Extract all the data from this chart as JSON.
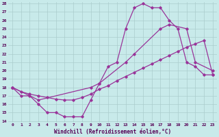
{
  "xlabel": "Windchill (Refroidissement éolien,°C)",
  "bg_color": "#c8eaea",
  "line_color": "#993399",
  "grid_color": "#aacccc",
  "ylim": [
    14,
    28
  ],
  "xlim": [
    -0.5,
    23.5
  ],
  "yticks": [
    14,
    15,
    16,
    17,
    18,
    19,
    20,
    21,
    22,
    23,
    24,
    25,
    26,
    27,
    28
  ],
  "xticks": [
    0,
    1,
    2,
    3,
    4,
    5,
    6,
    7,
    8,
    9,
    10,
    11,
    12,
    13,
    14,
    15,
    16,
    17,
    18,
    19,
    20,
    21,
    22,
    23
  ],
  "line1_x": [
    0,
    1,
    2,
    3,
    4,
    5,
    6,
    7,
    8,
    9,
    10,
    11,
    12,
    13,
    14,
    15,
    16,
    17,
    18,
    19,
    20,
    21,
    22,
    23
  ],
  "line1_y": [
    18,
    17,
    17,
    16,
    15,
    15,
    14.5,
    14.5,
    14.5,
    16.5,
    18.5,
    20.5,
    21,
    25,
    27.5,
    28,
    27.5,
    27.5,
    26,
    25,
    21,
    20.5,
    19.5,
    19.5
  ],
  "line2_x": [
    0,
    3,
    9,
    10,
    13,
    14,
    17,
    18,
    20,
    21,
    23
  ],
  "line2_y": [
    18,
    16.5,
    18,
    18.5,
    21,
    22,
    25,
    25.5,
    25,
    21,
    20
  ],
  "line3_x": [
    0,
    1,
    2,
    3,
    4,
    5,
    6,
    7,
    8,
    9,
    10,
    11,
    12,
    13,
    14,
    15,
    16,
    17,
    18,
    19,
    20,
    21,
    22,
    23
  ],
  "line3_y": [
    18,
    17.5,
    17.2,
    17,
    16.8,
    16.6,
    16.5,
    16.5,
    16.8,
    17.2,
    17.8,
    18.2,
    18.8,
    19.3,
    19.8,
    20.3,
    20.8,
    21.3,
    21.8,
    22.3,
    22.8,
    23.2,
    23.6,
    19.5
  ]
}
